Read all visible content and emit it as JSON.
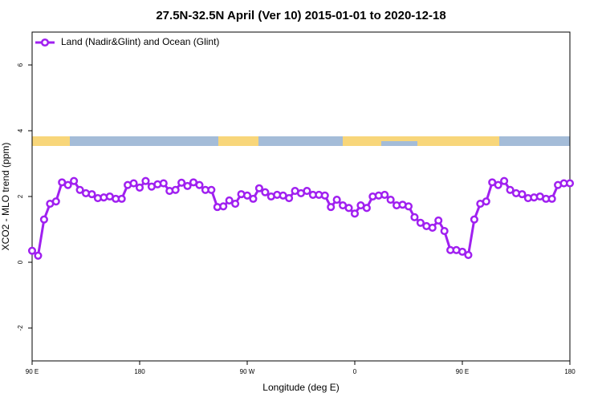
{
  "chart_data": {
    "type": "line",
    "title": "27.5N-32.5N April (Ver 10)   2015-01-01 to 2020-12-18",
    "x_label": "Longitude (deg E)",
    "y_label": "XCO2 - MLO trend (ppm)",
    "x": [
      90,
      95,
      100,
      105,
      110,
      115,
      120,
      125,
      130,
      135,
      140,
      145,
      150,
      155,
      160,
      165,
      170,
      175,
      180,
      185,
      190,
      195,
      200,
      205,
      210,
      215,
      220,
      225,
      230,
      235,
      240,
      245,
      250,
      255,
      260,
      265,
      270,
      275,
      280,
      285,
      290,
      295,
      300,
      305,
      310,
      315,
      320,
      325,
      330,
      335,
      340,
      345,
      350,
      355,
      360,
      365,
      370,
      375,
      380,
      385,
      390,
      395,
      400,
      405,
      410,
      415,
      420,
      425,
      430,
      435,
      440,
      445,
      450,
      455,
      460,
      465,
      470,
      475,
      480,
      485,
      490,
      495,
      500,
      505,
      510,
      515,
      520,
      525,
      530,
      535,
      540
    ],
    "series": [
      {
        "name": "Land (Nadir&Glint) and Ocean (Glint)",
        "color": "#a020f0",
        "values": [
          0.35,
          0.2,
          1.3,
          1.78,
          1.85,
          2.43,
          2.35,
          2.47,
          2.2,
          2.1,
          2.07,
          1.95,
          1.97,
          2.0,
          1.93,
          1.93,
          2.35,
          2.4,
          2.27,
          2.47,
          2.3,
          2.37,
          2.4,
          2.17,
          2.2,
          2.42,
          2.32,
          2.43,
          2.35,
          2.2,
          2.2,
          1.68,
          1.7,
          1.88,
          1.78,
          2.07,
          2.03,
          1.93,
          2.25,
          2.13,
          2.0,
          2.05,
          2.03,
          1.95,
          2.17,
          2.1,
          2.17,
          2.05,
          2.05,
          2.03,
          1.68,
          1.9,
          1.73,
          1.65,
          1.48,
          1.73,
          1.65,
          2.0,
          2.03,
          2.05,
          1.9,
          1.73,
          1.75,
          1.7,
          1.37,
          1.2,
          1.1,
          1.05,
          1.27,
          0.95,
          0.37,
          0.37,
          0.32,
          0.22,
          1.3,
          1.78,
          1.85,
          2.43,
          2.35,
          2.47,
          2.2,
          2.1,
          2.07,
          1.95,
          1.97,
          2.0,
          1.93,
          1.93,
          2.35,
          2.4,
          2.4
        ]
      }
    ],
    "xlim": [
      90,
      540
    ],
    "xticks": [
      {
        "value": 90,
        "label": "90 E"
      },
      180,
      {
        "value": 270,
        "label": "90 W"
      },
      {
        "value": 360,
        "label": "0"
      },
      {
        "value": 450,
        "label": "90 E"
      },
      {
        "value": 540,
        "label": "180"
      }
    ],
    "ylim": [
      -3,
      7
    ],
    "yticks": [
      -2,
      0,
      2,
      4,
      6
    ],
    "legend": "top-left"
  }
}
